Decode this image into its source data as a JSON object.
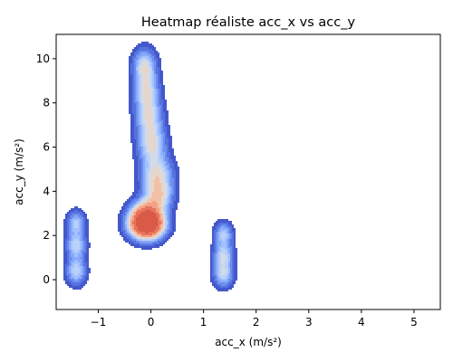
{
  "chart_data": {
    "type": "heatmap",
    "title": "Heatmap réaliste acc_x vs acc_y",
    "xlabel": "acc_x (m/s²)",
    "ylabel": "acc_y (m/s²)",
    "xlim": [
      -1.8,
      5.5
    ],
    "ylim": [
      -1.35,
      11.1
    ],
    "xticks": [
      {
        "value": -1,
        "label": "−1"
      },
      {
        "value": 0,
        "label": "0"
      },
      {
        "value": 1,
        "label": "1"
      },
      {
        "value": 2,
        "label": "2"
      },
      {
        "value": 3,
        "label": "3"
      },
      {
        "value": 4,
        "label": "4"
      },
      {
        "value": 5,
        "label": "5"
      }
    ],
    "yticks": [
      {
        "value": 0,
        "label": "0"
      },
      {
        "value": 2,
        "label": "2"
      },
      {
        "value": 4,
        "label": "4"
      },
      {
        "value": 6,
        "label": "6"
      },
      {
        "value": 8,
        "label": "8"
      },
      {
        "value": 10,
        "label": "10"
      }
    ],
    "grid": false,
    "colormap": "coolwarm",
    "colors": [
      "#4458cc",
      "#5672de",
      "#6c8ff0",
      "#88aafb",
      "#a3c1fe",
      "#bbd1f8",
      "#d3dbe7",
      "#e6d6cc",
      "#f2c0a7",
      "#f5a183",
      "#e8735d",
      "#d85a47"
    ],
    "density_components": [
      {
        "x": -0.12,
        "y": 9.7,
        "sx": 0.14,
        "sy": 0.48,
        "w": 0.55
      },
      {
        "x": -0.09,
        "y": 8.6,
        "sx": 0.15,
        "sy": 0.55,
        "w": 0.55
      },
      {
        "x": -0.04,
        "y": 7.4,
        "sx": 0.16,
        "sy": 0.6,
        "w": 0.55
      },
      {
        "x": 0.02,
        "y": 6.1,
        "sx": 0.17,
        "sy": 0.6,
        "w": 0.58
      },
      {
        "x": 0.12,
        "y": 4.7,
        "sx": 0.19,
        "sy": 0.55,
        "w": 0.62
      },
      {
        "x": 0.14,
        "y": 3.75,
        "sx": 0.17,
        "sy": 0.45,
        "w": 0.6
      },
      {
        "x": -0.1,
        "y": 3.2,
        "sx": 0.18,
        "sy": 0.35,
        "w": 0.45
      },
      {
        "x": -0.08,
        "y": 2.55,
        "sx": 0.2,
        "sy": 0.42,
        "w": 2.5
      },
      {
        "x": -1.42,
        "y": 2.55,
        "sx": 0.11,
        "sy": 0.35,
        "w": 0.45
      },
      {
        "x": -1.42,
        "y": 1.55,
        "sx": 0.12,
        "sy": 0.4,
        "w": 0.5
      },
      {
        "x": -1.42,
        "y": 0.4,
        "sx": 0.12,
        "sy": 0.4,
        "w": 0.5
      },
      {
        "x": 1.38,
        "y": 2.05,
        "sx": 0.11,
        "sy": 0.35,
        "w": 0.45
      },
      {
        "x": 1.38,
        "y": 1.1,
        "sx": 0.12,
        "sy": 0.38,
        "w": 0.5
      },
      {
        "x": 1.38,
        "y": 0.25,
        "sx": 0.12,
        "sy": 0.38,
        "w": 0.5
      }
    ]
  }
}
